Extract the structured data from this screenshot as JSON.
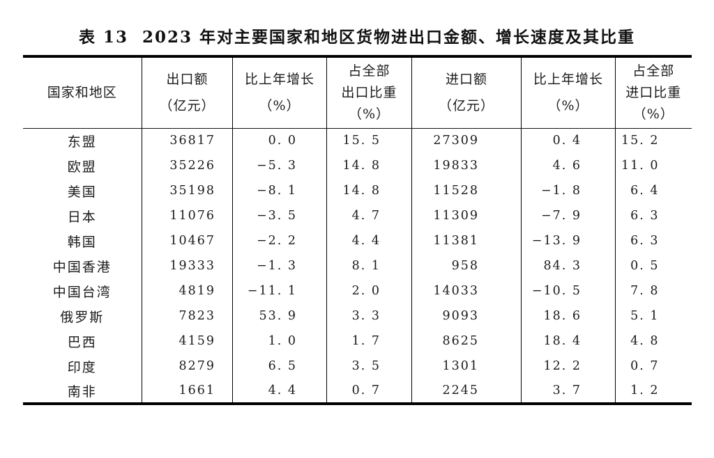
{
  "table": {
    "label": "表 13",
    "title": "2023 年对主要国家和地区货物进出口金额、增长速度及其比重",
    "columns": [
      {
        "id": "region",
        "lines": [
          "国家和地区"
        ]
      },
      {
        "id": "export",
        "lines": [
          "出口额",
          "（亿元）"
        ]
      },
      {
        "id": "export_growth",
        "lines": [
          "比上年增长",
          "（%）"
        ]
      },
      {
        "id": "export_share",
        "lines": [
          "占全部",
          "出口比重",
          "（%）"
        ]
      },
      {
        "id": "import",
        "lines": [
          "进口额",
          "（亿元）"
        ]
      },
      {
        "id": "import_growth",
        "lines": [
          "比上年增长",
          "（%）"
        ]
      },
      {
        "id": "import_share",
        "lines": [
          "占全部",
          "进口比重",
          "（%）"
        ]
      }
    ],
    "rows": [
      {
        "region": "东盟",
        "export": "36817",
        "export_growth": "0.0",
        "export_share": "15.5",
        "import": "27309",
        "import_growth": "0.4",
        "import_share": "15.2"
      },
      {
        "region": "欧盟",
        "export": "35226",
        "export_growth": "-5.3",
        "export_share": "14.8",
        "import": "19833",
        "import_growth": "4.6",
        "import_share": "11.0"
      },
      {
        "region": "美国",
        "export": "35198",
        "export_growth": "-8.1",
        "export_share": "14.8",
        "import": "11528",
        "import_growth": "-1.8",
        "import_share": "6.4"
      },
      {
        "region": "日本",
        "export": "11076",
        "export_growth": "-3.5",
        "export_share": "4.7",
        "import": "11309",
        "import_growth": "-7.9",
        "import_share": "6.3"
      },
      {
        "region": "韩国",
        "export": "10467",
        "export_growth": "-2.2",
        "export_share": "4.4",
        "import": "11381",
        "import_growth": "-13.9",
        "import_share": "6.3"
      },
      {
        "region": "中国香港",
        "export": "19333",
        "export_growth": "-1.3",
        "export_share": "8.1",
        "import": "958",
        "import_growth": "84.3",
        "import_share": "0.5"
      },
      {
        "region": "中国台湾",
        "export": "4819",
        "export_growth": "-11.1",
        "export_share": "2.0",
        "import": "14033",
        "import_growth": "-10.5",
        "import_share": "7.8"
      },
      {
        "region": "俄罗斯",
        "export": "7823",
        "export_growth": "53.9",
        "export_share": "3.3",
        "import": "9093",
        "import_growth": "18.6",
        "import_share": "5.1"
      },
      {
        "region": "巴西",
        "export": "4159",
        "export_growth": "1.0",
        "export_share": "1.7",
        "import": "8625",
        "import_growth": "18.4",
        "import_share": "4.8"
      },
      {
        "region": "印度",
        "export": "8279",
        "export_growth": "6.5",
        "export_share": "3.5",
        "import": "1301",
        "import_growth": "12.2",
        "import_share": "0.7"
      },
      {
        "region": "南非",
        "export": "1661",
        "export_growth": "4.4",
        "export_share": "0.7",
        "import": "2245",
        "import_growth": "3.7",
        "import_share": "1.2"
      }
    ]
  }
}
